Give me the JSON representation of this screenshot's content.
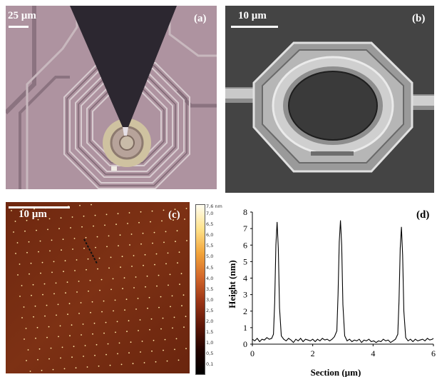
{
  "panel_a": {
    "label": "(a)",
    "scale_label": "25 µm",
    "icon": "optical-micrograph-probe-tip-spiral-coil"
  },
  "panel_b": {
    "label": "(b)",
    "scale_label": "10 µm",
    "icon": "sem-micrograph-ring-resonator"
  },
  "panel_c": {
    "label": "(c)",
    "scale_label": "10 µm",
    "icon": "afm-dot-array",
    "colorbar": {
      "unit_top": "7,6 nm",
      "ticks": [
        "7,0",
        "6,5",
        "6,0",
        "5,5",
        "5,0",
        "4,5",
        "4,0",
        "3,5",
        "3,0",
        "2,5",
        "2,0",
        "1,5",
        "1,0",
        "0,5",
        "0,1"
      ],
      "colors": [
        "#fffdf0",
        "#ffe28a",
        "#f2a43a",
        "#d2662a",
        "#9a3416",
        "#5e1708",
        "#220400",
        "#000000"
      ]
    }
  },
  "chart_data": {
    "type": "line",
    "label": "(d)",
    "xlabel": "Section (µm)",
    "ylabel": "Height (nm)",
    "xlim": [
      0,
      6
    ],
    "ylim": [
      0,
      8
    ],
    "xticks": [
      0,
      2,
      4,
      6
    ],
    "yticks": [
      0,
      1,
      2,
      3,
      4,
      5,
      6,
      7,
      8
    ],
    "series": [
      {
        "x": [
          0.0,
          0.08,
          0.16,
          0.24,
          0.32,
          0.4,
          0.48,
          0.56,
          0.64,
          0.7,
          0.74,
          0.78,
          0.82,
          0.86,
          0.9,
          0.96,
          1.04,
          1.12,
          1.2,
          1.28,
          1.36,
          1.44,
          1.52,
          1.6,
          1.68,
          1.76,
          1.84,
          1.92,
          2.0,
          2.08,
          2.16,
          2.24,
          2.32,
          2.4,
          2.48,
          2.56,
          2.64,
          2.72,
          2.8,
          2.84,
          2.88,
          2.92,
          2.96,
          3.0,
          3.06,
          3.14,
          3.22,
          3.3,
          3.38,
          3.46,
          3.54,
          3.62,
          3.7,
          3.78,
          3.86,
          3.94,
          4.02,
          4.1,
          4.18,
          4.26,
          4.34,
          4.42,
          4.5,
          4.58,
          4.66,
          4.74,
          4.82,
          4.86,
          4.9,
          4.94,
          4.98,
          5.02,
          5.08,
          5.16,
          5.24,
          5.32,
          5.4,
          5.48,
          5.56,
          5.64,
          5.72,
          5.8,
          5.88,
          5.96,
          6.0
        ],
        "y": [
          0.3,
          0.2,
          0.35,
          0.15,
          0.3,
          0.25,
          0.4,
          0.3,
          0.35,
          0.6,
          2.5,
          6.0,
          7.4,
          5.8,
          2.2,
          0.5,
          0.3,
          0.2,
          0.35,
          0.25,
          0.1,
          0.3,
          0.2,
          0.35,
          0.15,
          0.3,
          0.25,
          0.2,
          0.3,
          0.15,
          0.3,
          0.2,
          0.35,
          0.25,
          0.3,
          0.2,
          0.3,
          0.45,
          0.8,
          3.0,
          6.2,
          7.5,
          6.0,
          2.4,
          0.5,
          0.2,
          0.3,
          0.15,
          0.25,
          0.2,
          0.3,
          0.1,
          0.25,
          0.2,
          0.3,
          0.15,
          0.2,
          0.1,
          0.2,
          0.15,
          0.3,
          0.2,
          0.25,
          0.1,
          0.2,
          0.3,
          0.6,
          2.6,
          5.8,
          7.1,
          5.4,
          2.0,
          0.4,
          0.2,
          0.3,
          0.15,
          0.3,
          0.2,
          0.25,
          0.3,
          0.2,
          0.35,
          0.25,
          0.3,
          0.35
        ]
      }
    ]
  }
}
